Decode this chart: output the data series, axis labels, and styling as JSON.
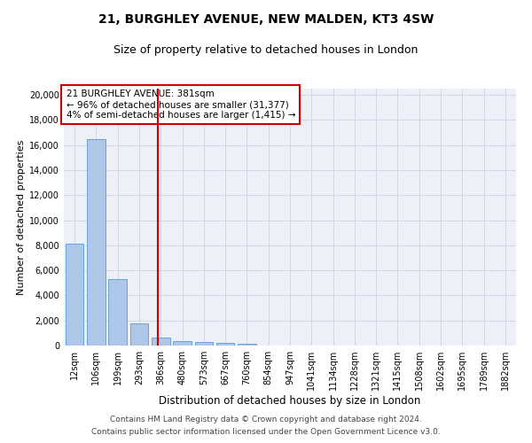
{
  "title1": "21, BURGHLEY AVENUE, NEW MALDEN, KT3 4SW",
  "title2": "Size of property relative to detached houses in London",
  "xlabel": "Distribution of detached houses by size in London",
  "ylabel": "Number of detached properties",
  "bar_labels": [
    "12sqm",
    "106sqm",
    "199sqm",
    "293sqm",
    "386sqm",
    "480sqm",
    "573sqm",
    "667sqm",
    "760sqm",
    "854sqm",
    "947sqm",
    "1041sqm",
    "1134sqm",
    "1228sqm",
    "1321sqm",
    "1415sqm",
    "1508sqm",
    "1602sqm",
    "1695sqm",
    "1789sqm",
    "1882sqm"
  ],
  "bar_values": [
    8100,
    16500,
    5300,
    1750,
    650,
    350,
    280,
    200,
    160,
    0,
    0,
    0,
    0,
    0,
    0,
    0,
    0,
    0,
    0,
    0,
    0
  ],
  "bar_color": "#aec6e8",
  "bar_edge_color": "#5b9bd5",
  "annotation_text": "21 BURGHLEY AVENUE: 381sqm\n← 96% of detached houses are smaller (31,377)\n4% of semi-detached houses are larger (1,415) →",
  "annotation_border_color": "#cc0000",
  "vline_x": 3.85,
  "vline_color": "#cc0000",
  "ylim": [
    0,
    20500
  ],
  "yticks": [
    0,
    2000,
    4000,
    6000,
    8000,
    10000,
    12000,
    14000,
    16000,
    18000,
    20000
  ],
  "grid_color": "#d0d8e8",
  "bg_color": "#eef0f8",
  "footer1": "Contains HM Land Registry data © Crown copyright and database right 2024.",
  "footer2": "Contains public sector information licensed under the Open Government Licence v3.0.",
  "title1_fontsize": 10,
  "title2_fontsize": 9,
  "xlabel_fontsize": 8.5,
  "ylabel_fontsize": 8,
  "tick_fontsize": 7,
  "footer_fontsize": 6.5
}
